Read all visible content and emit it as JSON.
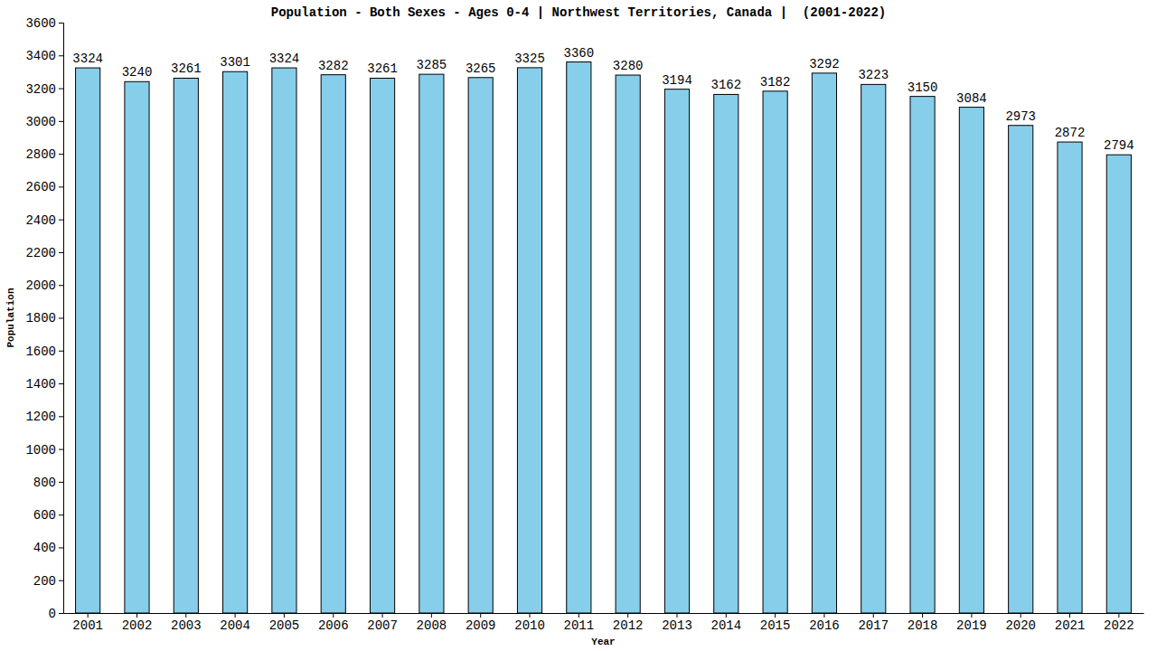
{
  "chart_data": {
    "type": "bar",
    "title": "Population - Both Sexes - Ages 0-4 | Northwest Territories, Canada |  (2001-2022)",
    "x_label": "Year",
    "y_label": "Population",
    "categories": [
      "2001",
      "2002",
      "2003",
      "2004",
      "2005",
      "2006",
      "2007",
      "2008",
      "2009",
      "2010",
      "2011",
      "2012",
      "2013",
      "2014",
      "2015",
      "2016",
      "2017",
      "2018",
      "2019",
      "2020",
      "2021",
      "2022"
    ],
    "values": [
      3324,
      3240,
      3261,
      3301,
      3324,
      3282,
      3261,
      3285,
      3265,
      3325,
      3360,
      3280,
      3194,
      3162,
      3182,
      3292,
      3223,
      3150,
      3084,
      2973,
      2872,
      2794
    ],
    "color": "#87ceeb",
    "ylim": [
      0,
      3600
    ],
    "yticks": [
      0,
      200,
      400,
      600,
      800,
      1000,
      1200,
      1400,
      1600,
      1800,
      2000,
      2200,
      2400,
      2600,
      2800,
      3000,
      3200,
      3400,
      3600
    ],
    "grid": false,
    "data_labels": true
  }
}
